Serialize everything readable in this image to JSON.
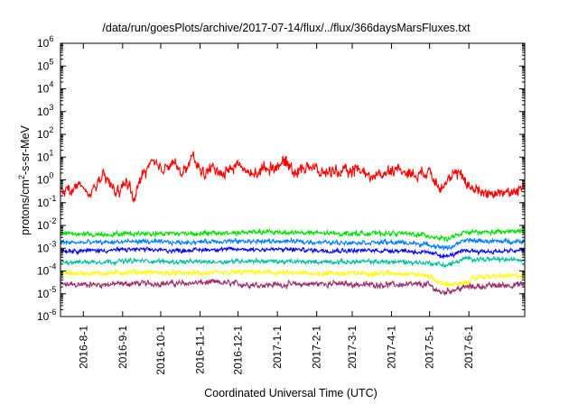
{
  "chart_data": {
    "type": "line",
    "title": "/data/run/goesPlots/archive/2017-07-14/flux/../flux/366daysMarsFluxes.txt",
    "xlabel": "Coordinated Universal Time (UTC)",
    "ylabel": "protons/cm²-s-sr-MeV",
    "ylabel_parts": {
      "pre": "protons/cm",
      "sup": "2",
      "post": "-s-sr-MeV"
    },
    "yscale": "log",
    "ylim_exponent": [
      -6,
      6
    ],
    "y_tick_base": "10",
    "y_tick_exponents": [
      "-6",
      "-5",
      "-4",
      "-3",
      "-2",
      "-1",
      "0",
      "1",
      "2",
      "3",
      "4",
      "5",
      "6"
    ],
    "x_range_days": [
      0,
      366
    ],
    "x_ticks": [
      {
        "label": "2016-8-1",
        "day": 18
      },
      {
        "label": "2016-9-1",
        "day": 49
      },
      {
        "label": "2016-10-1",
        "day": 79
      },
      {
        "label": "2016-11-1",
        "day": 110
      },
      {
        "label": "2016-12-1",
        "day": 140
      },
      {
        "label": "2017-1-1",
        "day": 171
      },
      {
        "label": "2017-2-1",
        "day": 202
      },
      {
        "label": "2017-3-1",
        "day": 230
      },
      {
        "label": "2017-4-1",
        "day": 261
      },
      {
        "label": "2017-5-1",
        "day": 291
      },
      {
        "label": "2017-6-1",
        "day": 322
      }
    ],
    "grid": false,
    "legend": "none",
    "series": [
      {
        "color": "#9b2f6b",
        "points": [
          [
            0,
            -4.6
          ],
          [
            30,
            -4.6
          ],
          [
            60,
            -4.55
          ],
          [
            90,
            -4.55
          ],
          [
            120,
            -4.5
          ],
          [
            150,
            -4.6
          ],
          [
            180,
            -4.6
          ],
          [
            210,
            -4.55
          ],
          [
            240,
            -4.6
          ],
          [
            270,
            -4.6
          ],
          [
            290,
            -4.6
          ],
          [
            300,
            -4.95
          ],
          [
            320,
            -4.7
          ],
          [
            340,
            -4.65
          ],
          [
            366,
            -4.6
          ]
        ],
        "noise": 0.16
      },
      {
        "color": "#ffff00",
        "points": [
          [
            0,
            -4.1
          ],
          [
            30,
            -4.1
          ],
          [
            60,
            -4.05
          ],
          [
            90,
            -4.1
          ],
          [
            120,
            -4.1
          ],
          [
            150,
            -4.05
          ],
          [
            180,
            -4.1
          ],
          [
            210,
            -4.1
          ],
          [
            240,
            -4.1
          ],
          [
            270,
            -4.1
          ],
          [
            290,
            -4.2
          ],
          [
            300,
            -4.55
          ],
          [
            315,
            -4.6
          ],
          [
            330,
            -4.25
          ],
          [
            366,
            -4.2
          ]
        ],
        "noise": 0.13
      },
      {
        "color": "#00bf9f",
        "points": [
          [
            0,
            -3.6
          ],
          [
            30,
            -3.6
          ],
          [
            60,
            -3.55
          ],
          [
            90,
            -3.6
          ],
          [
            120,
            -3.6
          ],
          [
            150,
            -3.55
          ],
          [
            180,
            -3.6
          ],
          [
            210,
            -3.6
          ],
          [
            240,
            -3.6
          ],
          [
            270,
            -3.6
          ],
          [
            290,
            -3.65
          ],
          [
            305,
            -3.75
          ],
          [
            320,
            -3.45
          ],
          [
            340,
            -3.5
          ],
          [
            366,
            -3.5
          ]
        ],
        "noise": 0.12
      },
      {
        "color": "#0000ff",
        "points": [
          [
            0,
            -3.1
          ],
          [
            30,
            -3.1
          ],
          [
            60,
            -3.05
          ],
          [
            90,
            -3.1
          ],
          [
            120,
            -3.05
          ],
          [
            150,
            -3.05
          ],
          [
            180,
            -3.05
          ],
          [
            210,
            -3.1
          ],
          [
            240,
            -3.1
          ],
          [
            270,
            -3.1
          ],
          [
            290,
            -3.2
          ],
          [
            305,
            -3.35
          ],
          [
            320,
            -3.1
          ],
          [
            340,
            -3.15
          ],
          [
            366,
            -3.1
          ]
        ],
        "noise": 0.12
      },
      {
        "color": "#007fff",
        "points": [
          [
            0,
            -2.75
          ],
          [
            30,
            -2.75
          ],
          [
            60,
            -2.7
          ],
          [
            90,
            -2.75
          ],
          [
            120,
            -2.7
          ],
          [
            150,
            -2.7
          ],
          [
            180,
            -2.7
          ],
          [
            210,
            -2.75
          ],
          [
            240,
            -2.75
          ],
          [
            270,
            -2.75
          ],
          [
            290,
            -2.85
          ],
          [
            305,
            -3.0
          ],
          [
            320,
            -2.65
          ],
          [
            340,
            -2.7
          ],
          [
            366,
            -2.7
          ]
        ],
        "noise": 0.12
      },
      {
        "color": "#ffffff",
        "points": [
          [
            0,
            -2.95
          ],
          [
            30,
            -2.95
          ],
          [
            60,
            -2.9
          ],
          [
            90,
            -2.95
          ],
          [
            120,
            -2.9
          ],
          [
            150,
            -2.9
          ],
          [
            180,
            -2.9
          ],
          [
            210,
            -2.95
          ],
          [
            240,
            -2.95
          ],
          [
            270,
            -2.95
          ],
          [
            290,
            -3.05
          ],
          [
            305,
            -3.2
          ],
          [
            320,
            -2.9
          ],
          [
            340,
            -2.95
          ],
          [
            366,
            -2.9
          ]
        ],
        "noise": 0.08
      },
      {
        "color": "#00e000",
        "points": [
          [
            0,
            -2.35
          ],
          [
            30,
            -2.4
          ],
          [
            60,
            -2.35
          ],
          [
            90,
            -2.35
          ],
          [
            120,
            -2.35
          ],
          [
            150,
            -2.3
          ],
          [
            180,
            -2.3
          ],
          [
            210,
            -2.35
          ],
          [
            240,
            -2.35
          ],
          [
            270,
            -2.35
          ],
          [
            290,
            -2.45
          ],
          [
            305,
            -2.6
          ],
          [
            320,
            -2.3
          ],
          [
            340,
            -2.3
          ],
          [
            366,
            -2.25
          ]
        ],
        "noise": 0.13
      },
      {
        "color": "#ff0000",
        "points": [
          [
            0,
            -0.3
          ],
          [
            8,
            -0.5
          ],
          [
            15,
            -0.2
          ],
          [
            22,
            -0.7
          ],
          [
            28,
            -0.2
          ],
          [
            34,
            0.1
          ],
          [
            40,
            -0.2
          ],
          [
            46,
            -0.6
          ],
          [
            52,
            0.0
          ],
          [
            58,
            -0.9
          ],
          [
            64,
            0.2
          ],
          [
            72,
            0.8
          ],
          [
            80,
            0.4
          ],
          [
            88,
            0.9
          ],
          [
            96,
            0.2
          ],
          [
            104,
            1.0
          ],
          [
            112,
            0.3
          ],
          [
            120,
            0.5
          ],
          [
            130,
            0.3
          ],
          [
            140,
            0.7
          ],
          [
            150,
            0.2
          ],
          [
            160,
            0.5
          ],
          [
            170,
            0.6
          ],
          [
            178,
            0.8
          ],
          [
            186,
            0.3
          ],
          [
            195,
            0.7
          ],
          [
            205,
            0.3
          ],
          [
            215,
            0.4
          ],
          [
            225,
            0.3
          ],
          [
            235,
            0.5
          ],
          [
            245,
            0.1
          ],
          [
            255,
            0.3
          ],
          [
            262,
            0.5
          ],
          [
            270,
            0.4
          ],
          [
            280,
            0.2
          ],
          [
            290,
            0.4
          ],
          [
            300,
            -0.3
          ],
          [
            308,
            0.1
          ],
          [
            316,
            0.3
          ],
          [
            322,
            -0.3
          ],
          [
            330,
            -0.5
          ],
          [
            340,
            -0.6
          ],
          [
            350,
            -0.5
          ],
          [
            358,
            -0.6
          ],
          [
            366,
            -0.2
          ]
        ],
        "noise": 0.32
      }
    ]
  }
}
